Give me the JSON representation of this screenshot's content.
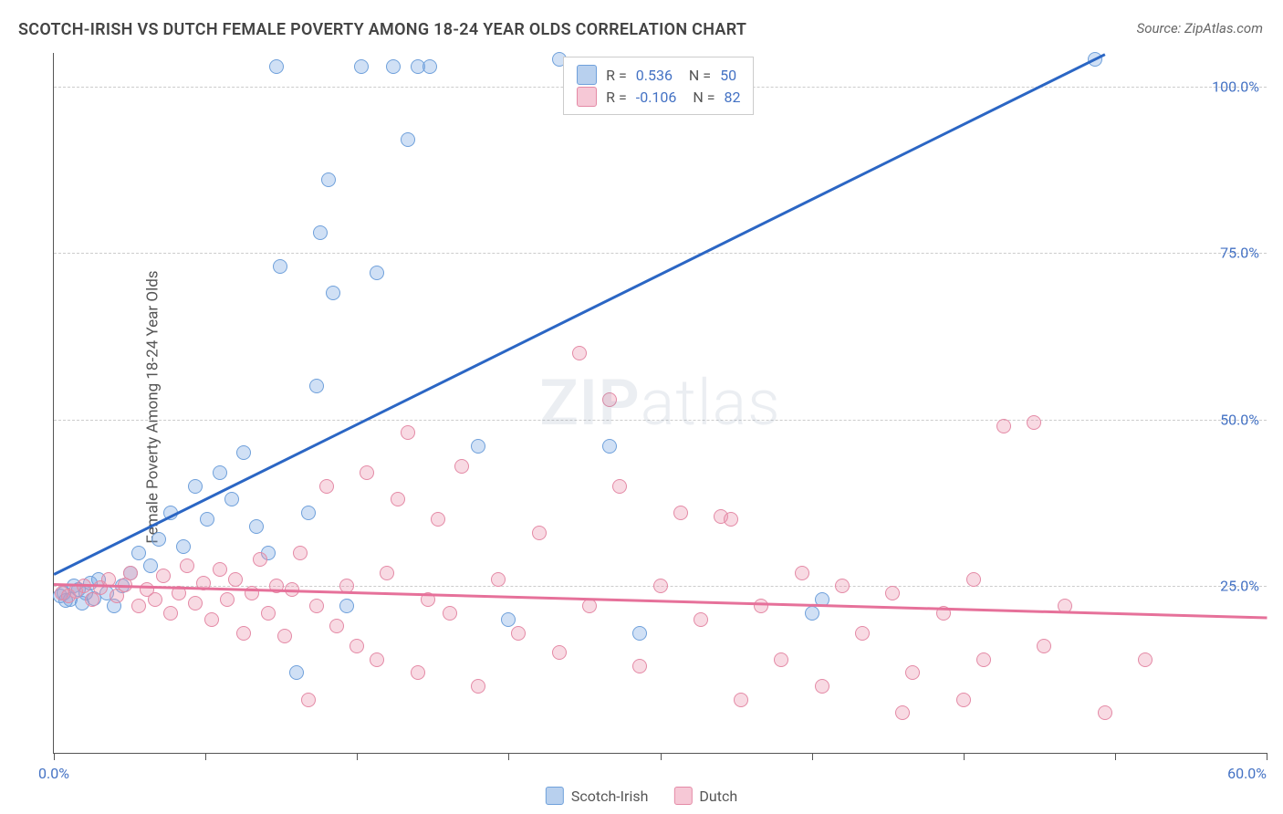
{
  "title": "SCOTCH-IRISH VS DUTCH FEMALE POVERTY AMONG 18-24 YEAR OLDS CORRELATION CHART",
  "source": "Source: ZipAtlas.com",
  "y_label": "Female Poverty Among 18-24 Year Olds",
  "watermark_bold": "ZIP",
  "watermark_rest": "atlas",
  "x_min_label": "0.0%",
  "x_max_label": "60.0%",
  "chart": {
    "type": "scatter",
    "xlim": [
      0,
      60
    ],
    "ylim": [
      0,
      105
    ],
    "yticks": [
      25,
      50,
      75,
      100
    ],
    "ytick_labels": [
      "25.0%",
      "50.0%",
      "75.0%",
      "100.0%"
    ],
    "xtick_positions": [
      0,
      7.5,
      15,
      22.5,
      30,
      37.5,
      45,
      52.5,
      60
    ],
    "grid_color": "#cccccc",
    "background_color": "#ffffff",
    "axis_color": "#555555",
    "marker_radius": 8,
    "marker_stroke_width": 1.2,
    "series": [
      {
        "name": "Scotch-Irish",
        "fill": "rgba(120,165,225,0.35)",
        "stroke": "#6fa0db",
        "swatch_fill": "#b8d0ee",
        "swatch_border": "#6fa0db",
        "r": "0.536",
        "n": "50",
        "trend": {
          "x1": 0,
          "y1": 27,
          "x2": 52,
          "y2": 105,
          "color": "#2b66c4",
          "width": 2.5
        },
        "points": [
          [
            0.3,
            23.5
          ],
          [
            0.5,
            24
          ],
          [
            0.8,
            23
          ],
          [
            1.0,
            25
          ],
          [
            1.2,
            24.5
          ],
          [
            1.4,
            22.5
          ],
          [
            1.6,
            24
          ],
          [
            1.8,
            25.5
          ],
          [
            2.0,
            23.2
          ],
          [
            2.2,
            26
          ],
          [
            2.6,
            24
          ],
          [
            3.0,
            22
          ],
          [
            3.4,
            25
          ],
          [
            3.8,
            27
          ],
          [
            4.2,
            30
          ],
          [
            4.8,
            28
          ],
          [
            5.2,
            32
          ],
          [
            5.8,
            36
          ],
          [
            6.4,
            31
          ],
          [
            7.0,
            40
          ],
          [
            7.6,
            35
          ],
          [
            8.2,
            42
          ],
          [
            8.8,
            38
          ],
          [
            9.4,
            45
          ],
          [
            10.0,
            34
          ],
          [
            10.6,
            30
          ],
          [
            11.2,
            73
          ],
          [
            12.0,
            12
          ],
          [
            12.6,
            36
          ],
          [
            13.2,
            78
          ],
          [
            13.6,
            86
          ],
          [
            13.8,
            69
          ],
          [
            14.5,
            22
          ],
          [
            11.0,
            103
          ],
          [
            13.0,
            55
          ],
          [
            15.2,
            103
          ],
          [
            16.0,
            72
          ],
          [
            16.8,
            103
          ],
          [
            17.5,
            92
          ],
          [
            18.0,
            103
          ],
          [
            18.6,
            103
          ],
          [
            21.0,
            46
          ],
          [
            22.5,
            20
          ],
          [
            25.0,
            104
          ],
          [
            27.5,
            46
          ],
          [
            29.0,
            18
          ],
          [
            38.0,
            23
          ],
          [
            37.5,
            21
          ],
          [
            51.5,
            104
          ],
          [
            0.6,
            22.8
          ]
        ]
      },
      {
        "name": "Dutch",
        "fill": "rgba(235,150,175,0.35)",
        "stroke": "#e48aa6",
        "swatch_fill": "#f6c8d6",
        "swatch_border": "#e48aa6",
        "r": "-0.106",
        "n": "82",
        "trend": {
          "x1": 0,
          "y1": 25.5,
          "x2": 60,
          "y2": 20.5,
          "color": "#e6719a",
          "width": 2.5
        },
        "points": [
          [
            0.4,
            24
          ],
          [
            0.7,
            23.5
          ],
          [
            1.1,
            24.2
          ],
          [
            1.5,
            25
          ],
          [
            1.9,
            23
          ],
          [
            2.3,
            24.8
          ],
          [
            2.7,
            26
          ],
          [
            3.1,
            23.5
          ],
          [
            3.5,
            25.2
          ],
          [
            3.8,
            27
          ],
          [
            4.2,
            22
          ],
          [
            4.6,
            24.5
          ],
          [
            5.0,
            23
          ],
          [
            5.4,
            26.5
          ],
          [
            5.8,
            21
          ],
          [
            6.2,
            24
          ],
          [
            6.6,
            28
          ],
          [
            7.0,
            22.5
          ],
          [
            7.4,
            25.5
          ],
          [
            7.8,
            20
          ],
          [
            8.2,
            27.5
          ],
          [
            8.6,
            23
          ],
          [
            9.0,
            26
          ],
          [
            9.4,
            18
          ],
          [
            9.8,
            24
          ],
          [
            10.2,
            29
          ],
          [
            10.6,
            21
          ],
          [
            11.0,
            25
          ],
          [
            11.4,
            17.5
          ],
          [
            11.8,
            24.5
          ],
          [
            12.2,
            30
          ],
          [
            12.6,
            8
          ],
          [
            13.0,
            22
          ],
          [
            13.5,
            40
          ],
          [
            14.0,
            19
          ],
          [
            14.5,
            25
          ],
          [
            15.0,
            16
          ],
          [
            15.5,
            42
          ],
          [
            16.0,
            14
          ],
          [
            16.5,
            27
          ],
          [
            17.0,
            38
          ],
          [
            17.5,
            48
          ],
          [
            18.0,
            12
          ],
          [
            18.5,
            23
          ],
          [
            19.0,
            35
          ],
          [
            19.6,
            21
          ],
          [
            20.2,
            43
          ],
          [
            21.0,
            10
          ],
          [
            22.0,
            26
          ],
          [
            23.0,
            18
          ],
          [
            24.0,
            33
          ],
          [
            25.0,
            15
          ],
          [
            26.0,
            60
          ],
          [
            26.5,
            22
          ],
          [
            27.5,
            53
          ],
          [
            28.0,
            40
          ],
          [
            29.0,
            13
          ],
          [
            30.0,
            25
          ],
          [
            31.0,
            36
          ],
          [
            32.0,
            20
          ],
          [
            33.0,
            35.5
          ],
          [
            33.5,
            35
          ],
          [
            34.0,
            8
          ],
          [
            35.0,
            22
          ],
          [
            36.0,
            14
          ],
          [
            37.0,
            27
          ],
          [
            38.0,
            10
          ],
          [
            39.0,
            25
          ],
          [
            40.0,
            18
          ],
          [
            41.5,
            24
          ],
          [
            42.5,
            12
          ],
          [
            44.0,
            21
          ],
          [
            45.0,
            8
          ],
          [
            45.5,
            26
          ],
          [
            47.0,
            49
          ],
          [
            48.5,
            49.5
          ],
          [
            49.0,
            16
          ],
          [
            50.0,
            22
          ],
          [
            52.0,
            6
          ],
          [
            54.0,
            14
          ],
          [
            46.0,
            14
          ],
          [
            42.0,
            6
          ]
        ]
      }
    ]
  },
  "legend_bottom": [
    {
      "label": "Scotch-Irish"
    },
    {
      "label": "Dutch"
    }
  ]
}
